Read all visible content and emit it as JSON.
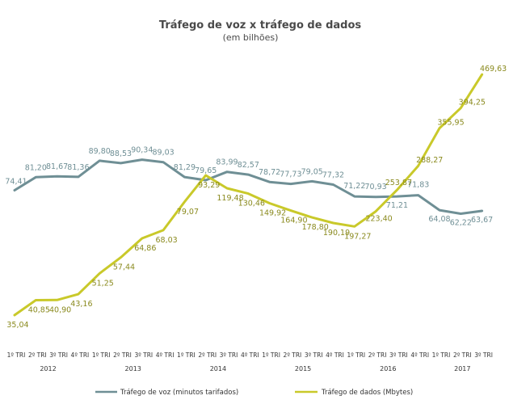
{
  "chart_data": {
    "type": "line",
    "title": "Tráfego de voz x tráfego de dados",
    "subtitle": "(em bilhões)",
    "categories": [
      "1º TRI",
      "2º TRI",
      "3º TRI",
      "4º TRI",
      "1º TRI",
      "2º TRI",
      "3º TRI",
      "4º TRI",
      "1º TRI",
      "2º TRI",
      "3º TRI",
      "4º TRI",
      "1º TRI",
      "2º TRI",
      "3º TRI",
      "4º TRI",
      "1º TRI",
      "2º TRI",
      "3º TRI",
      "4º TRI",
      "1º TRI",
      "2º TRI",
      "3º TRI"
    ],
    "years": [
      "2012",
      "2013",
      "2014",
      "2015",
      "2016",
      "2017"
    ],
    "ylim": [
      0,
      500
    ],
    "series": [
      {
        "name": "Tráfego de voz (minutos tarifados)",
        "color": "#6f8f95",
        "values": [
          74.41,
          81.2,
          81.67,
          81.36,
          89.8,
          88.53,
          90.34,
          89.03,
          81.29,
          79.65,
          83.99,
          82.57,
          78.72,
          77.73,
          79.05,
          77.32,
          71.22,
          70.93,
          71.21,
          71.83,
          64.08,
          62.22,
          63.67
        ],
        "labels": [
          "74,41",
          "81,20",
          "81,67",
          "81,36",
          "89,80",
          "88,53",
          "90,34",
          "89,03",
          "81,29",
          "79,65",
          "83,99",
          "82,57",
          "78,72",
          "77,73",
          "79,05",
          "77,32",
          "71,22",
          "70,93",
          "71,21",
          "71,83",
          "64,08",
          "62,22",
          "63,67"
        ]
      },
      {
        "name": "Tráfego de dados (Mbytes)",
        "color": "#c9c92a",
        "label_color": "#8a8a1e",
        "values": [
          35.04,
          40.85,
          40.9,
          43.16,
          51.25,
          57.44,
          64.86,
          68.03,
          79.07,
          93.29,
          119.48,
          130.46,
          149.92,
          164.9,
          178.8,
          190.19,
          197.27,
          223.4,
          253.87,
          288.27,
          355.95,
          394.25,
          469.63
        ],
        "labels": [
          "35,04",
          "40,85",
          "40,90",
          "43,16",
          "51,25",
          "57,44",
          "64,86",
          "68,03",
          "79,07",
          "93,29",
          "119,48",
          "130,46",
          "149,92",
          "164,90",
          "178,80",
          "190,19",
          "197,27",
          "223,40",
          "253,87",
          "288,27",
          "355,95",
          "394,25",
          "469,63"
        ]
      }
    ],
    "legend": {
      "voice": "Tráfego de voz (minutos tarifados)",
      "data": "Tráfego de dados (Mbytes)"
    }
  }
}
